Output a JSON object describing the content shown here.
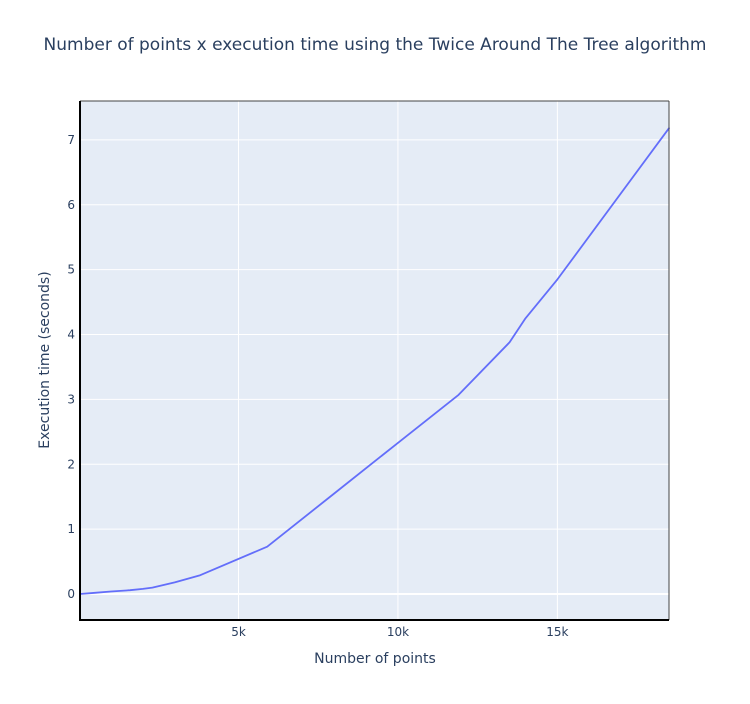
{
  "chart_data": {
    "type": "line",
    "title": "Number of points x execution time using the Twice Around The Tree algorithm",
    "xlabel": "Number of points",
    "ylabel": "Execution time (seconds)",
    "xlim": [
      30,
      18500
    ],
    "ylim": [
      -0.4,
      7.6
    ],
    "xticks": [
      {
        "value": 5000,
        "label": "5k"
      },
      {
        "value": 10000,
        "label": "10k"
      },
      {
        "value": 15000,
        "label": "15k"
      }
    ],
    "yticks": [
      {
        "value": 0,
        "label": "0"
      },
      {
        "value": 1,
        "label": "1"
      },
      {
        "value": 2,
        "label": "2"
      },
      {
        "value": 3,
        "label": "3"
      },
      {
        "value": 4,
        "label": "4"
      },
      {
        "value": 5,
        "label": "5"
      },
      {
        "value": 6,
        "label": "6"
      },
      {
        "value": 7,
        "label": "7"
      }
    ],
    "grid": true,
    "legend": "none",
    "series": [
      {
        "color": "#636efa",
        "x": [
          30,
          500,
          1000,
          1600,
          2000,
          2300,
          3000,
          3800,
          5900,
          8000,
          10000,
          11900,
          13500,
          14000,
          15000,
          18500
        ],
        "y": [
          0.0,
          0.02,
          0.04,
          0.06,
          0.08,
          0.1,
          0.18,
          0.29,
          0.73,
          1.55,
          2.33,
          3.07,
          3.88,
          4.25,
          4.85,
          7.18
        ]
      }
    ]
  }
}
